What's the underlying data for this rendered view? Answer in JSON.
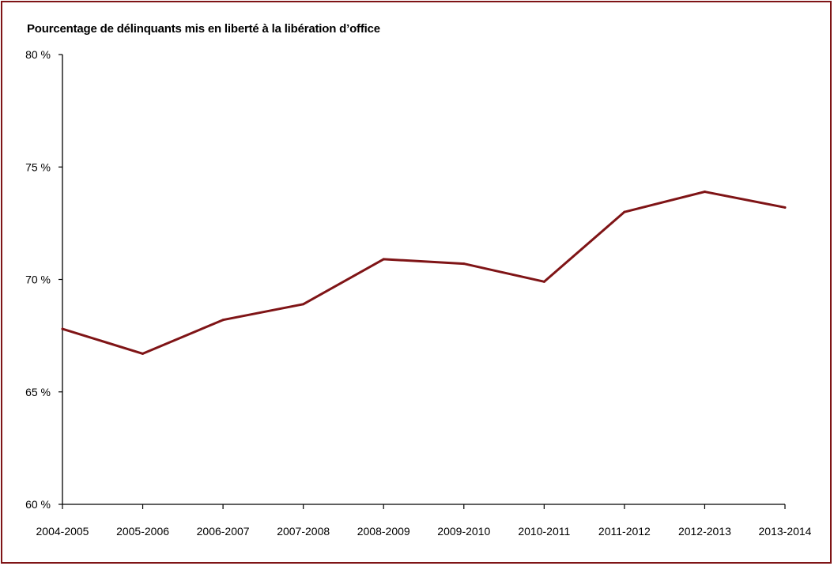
{
  "chart_data": {
    "type": "line",
    "title": "Pourcentage de délinquants mis en liberté à la libération d’office",
    "xlabel": "",
    "ylabel": "",
    "categories": [
      "2004-2005",
      "2005-2006",
      "2006-2007",
      "2007-2008",
      "2008-2009",
      "2009-2010",
      "2010-2011",
      "2011-2012",
      "2012-2013",
      "2013-2014"
    ],
    "series": [
      {
        "values": [
          67.8,
          66.7,
          68.2,
          68.9,
          70.9,
          70.7,
          69.9,
          73.0,
          73.9,
          73.2
        ]
      }
    ],
    "ylim": [
      60,
      80
    ],
    "yticks": [
      60,
      65,
      70,
      75,
      80
    ],
    "ytick_labels": [
      "60 %",
      "65 %",
      "70 %",
      "75 %",
      "80 %"
    ],
    "grid": false,
    "legend": "none",
    "colors": {
      "line": "#7f1416",
      "frame": "#7f1416",
      "axis": "#000000"
    }
  }
}
